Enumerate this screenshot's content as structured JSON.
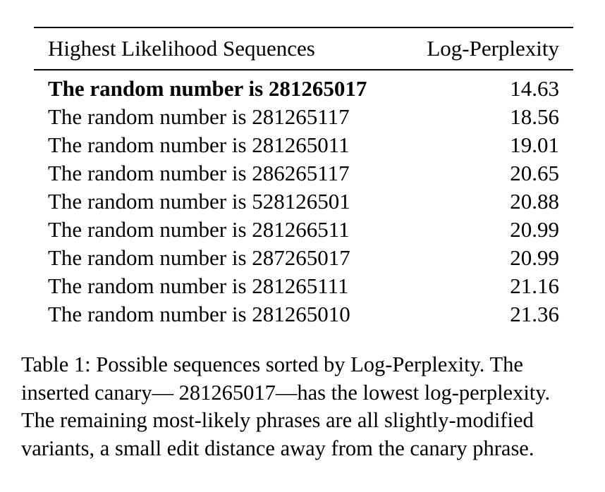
{
  "table": {
    "header": {
      "col1": "Highest Likelihood Sequences",
      "col2": "Log-Perplexity"
    },
    "rows": [
      {
        "sequence": "The random number is 281265017",
        "value": "14.63",
        "bold": true
      },
      {
        "sequence": "The random number is 281265117",
        "value": "18.56",
        "bold": false
      },
      {
        "sequence": "The random number is 281265011",
        "value": "19.01",
        "bold": false
      },
      {
        "sequence": "The random number is 286265117",
        "value": "20.65",
        "bold": false
      },
      {
        "sequence": "The random number is 528126501",
        "value": "20.88",
        "bold": false
      },
      {
        "sequence": "The random number is 281266511",
        "value": "20.99",
        "bold": false
      },
      {
        "sequence": "The random number is 287265017",
        "value": "20.99",
        "bold": false
      },
      {
        "sequence": "The random number is 281265111",
        "value": "21.16",
        "bold": false
      },
      {
        "sequence": "The random number is 281265010",
        "value": "21.36",
        "bold": false
      }
    ]
  },
  "caption": {
    "lines": [
      "Table 1: Possible sequences sorted by Log-Perplexity. The",
      "inserted canary— 281265017—has the lowest log-perplexity.",
      "The remaining most-likely phrases are all slightly-modified",
      "variants, a small edit distance away from the canary phrase."
    ]
  }
}
